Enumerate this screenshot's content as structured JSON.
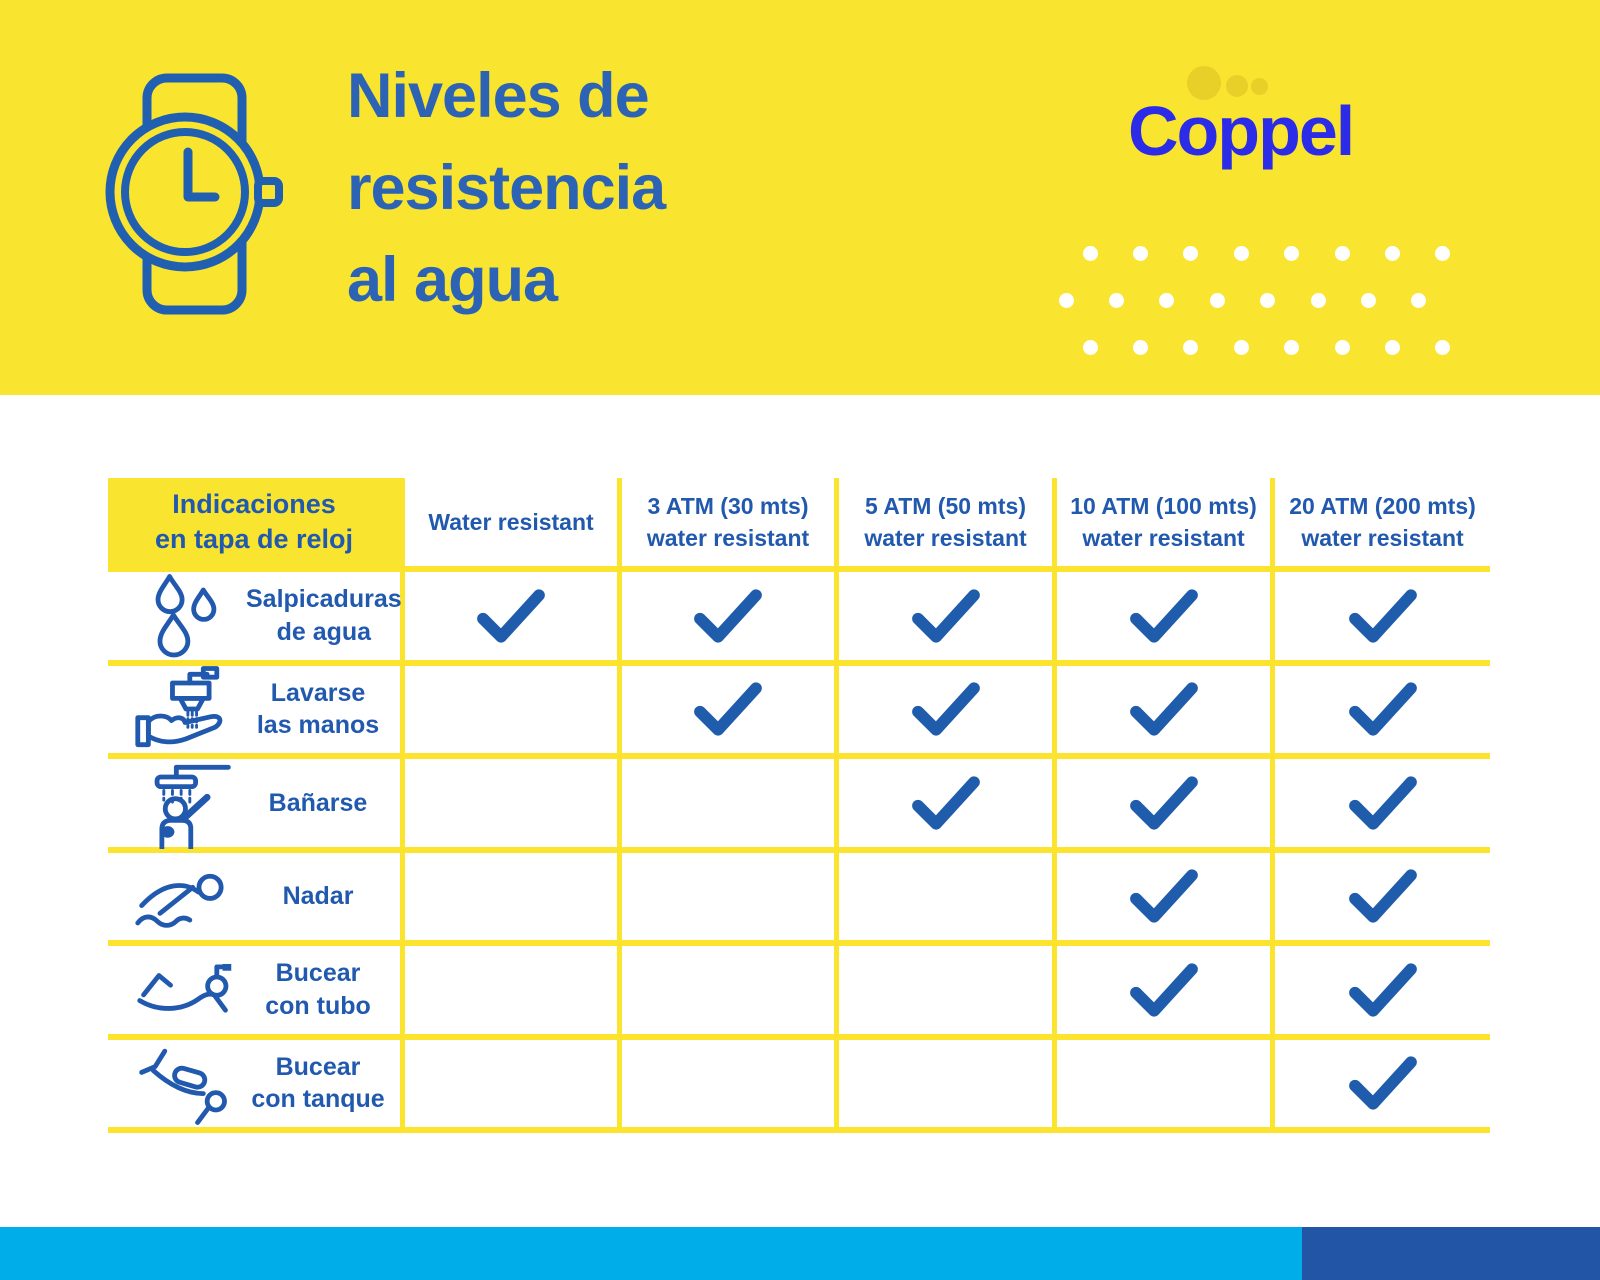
{
  "header": {
    "title": "Niveles de\nresistencia\nal agua",
    "brand": "Coppel",
    "band_color": "#F9E42F",
    "title_color": "#2D63B4",
    "brand_color": "#2B2BE8",
    "watch_icon": "watch-icon"
  },
  "table": {
    "corner_header": "Indicaciones\nen tapa de reloj",
    "column_headers": [
      "Water resistant",
      "3 ATM (30 mts)\nwater resistant",
      "5 ATM (50 mts)\nwater resistant",
      "10 ATM (100 mts)\nwater resistant",
      "20 ATM (200 mts)\nwater resistant"
    ],
    "rows": [
      {
        "icon": "water-drops-icon",
        "label": "Salpicaduras\nde agua",
        "checks": [
          true,
          true,
          true,
          true,
          true
        ]
      },
      {
        "icon": "hand-wash-icon",
        "label": "Lavarse\nlas manos",
        "checks": [
          false,
          true,
          true,
          true,
          true
        ]
      },
      {
        "icon": "shower-icon",
        "label": "Bañarse",
        "checks": [
          false,
          false,
          true,
          true,
          true
        ]
      },
      {
        "icon": "swimmer-icon",
        "label": "Nadar",
        "checks": [
          false,
          false,
          false,
          true,
          true
        ]
      },
      {
        "icon": "snorkel-icon",
        "label": "Bucear\ncon tubo",
        "checks": [
          false,
          false,
          false,
          true,
          true
        ]
      },
      {
        "icon": "scuba-icon",
        "label": "Bucear\ncon tanque",
        "checks": [
          false,
          false,
          false,
          false,
          true
        ]
      }
    ],
    "check_color": "#1F5CAB",
    "text_color": "#2159AE",
    "grid_color": "#FBE32E"
  },
  "footer": {
    "cyan_color": "#00ADE9",
    "blue_color": "#2355A6"
  },
  "chart_data": {
    "type": "table",
    "title": "Niveles de resistencia al agua",
    "columns": [
      "Indicaciones en tapa de reloj",
      "Water resistant",
      "3 ATM (30 mts) water resistant",
      "5 ATM (50 mts) water resistant",
      "10 ATM (100 mts) water resistant",
      "20 ATM (200 mts) water resistant"
    ],
    "rows": [
      {
        "activity": "Salpicaduras de agua",
        "values": [
          true,
          true,
          true,
          true,
          true
        ]
      },
      {
        "activity": "Lavarse las manos",
        "values": [
          false,
          true,
          true,
          true,
          true
        ]
      },
      {
        "activity": "Bañarse",
        "values": [
          false,
          false,
          true,
          true,
          true
        ]
      },
      {
        "activity": "Nadar",
        "values": [
          false,
          false,
          false,
          true,
          true
        ]
      },
      {
        "activity": "Bucear con tubo",
        "values": [
          false,
          false,
          false,
          true,
          true
        ]
      },
      {
        "activity": "Bucear con tanque",
        "values": [
          false,
          false,
          false,
          false,
          true
        ]
      }
    ]
  }
}
